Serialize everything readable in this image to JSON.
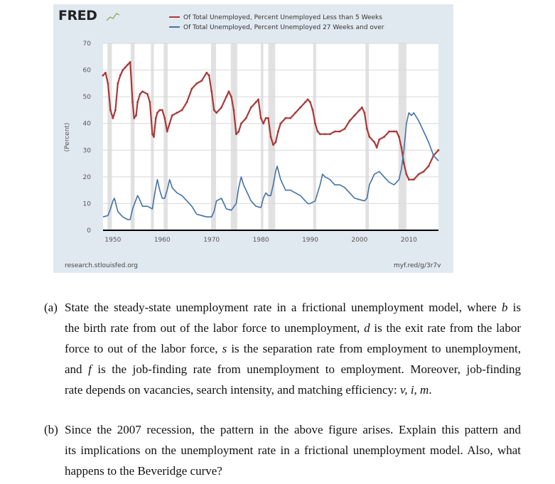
{
  "chart": {
    "logo_text": "FRED",
    "source_left": "research.stlouisfed.org",
    "source_right": "myf.red/g/3r7v",
    "colors": {
      "background": "#e1e9f0",
      "recession": "#e1e1e1",
      "series1": "#aa3939",
      "series2": "#4572a7"
    }
  },
  "chart_data": {
    "type": "line",
    "ylabel": "(Percent)",
    "ylim": [
      0,
      70
    ],
    "xlim": [
      1948,
      2016
    ],
    "grid": true,
    "legend_position": "top",
    "yticks": [
      "0",
      "10",
      "20",
      "30",
      "40",
      "50",
      "60",
      "70"
    ],
    "xticks": [
      "1950",
      "1960",
      "1970",
      "1980",
      "1990",
      "2000",
      "2010"
    ],
    "recessions": [
      [
        1948.9,
        1949.8
      ],
      [
        1953.6,
        1954.4
      ],
      [
        1957.7,
        1958.3
      ],
      [
        1960.3,
        1961.1
      ],
      [
        1969.9,
        1970.9
      ],
      [
        1973.9,
        1975.2
      ],
      [
        1980.0,
        1980.5
      ],
      [
        1981.5,
        1982.9
      ],
      [
        1990.6,
        1991.2
      ],
      [
        2001.2,
        2001.9
      ],
      [
        2007.9,
        2009.5
      ]
    ],
    "series": [
      {
        "name": "Of Total Unemployed, Percent Unemployed Less than 5 Weeks",
        "x": [
          1948,
          1948.5,
          1949,
          1949.5,
          1950,
          1950.5,
          1951,
          1951.5,
          1952,
          1952.5,
          1953,
          1953.5,
          1954,
          1954.3,
          1954.7,
          1955,
          1955.5,
          1956,
          1957,
          1957.5,
          1958,
          1958.3,
          1958.7,
          1959,
          1959.5,
          1960,
          1960.5,
          1961,
          1961.5,
          1962,
          1963,
          1964,
          1965,
          1966,
          1967,
          1968,
          1969,
          1969.5,
          1970,
          1970.5,
          1971,
          1972,
          1973,
          1973.5,
          1974,
          1974.5,
          1975,
          1975.5,
          1976,
          1977,
          1978,
          1979,
          1979.5,
          1980,
          1980.5,
          1981,
          1981.5,
          1982,
          1982.5,
          1983,
          1983.5,
          1984,
          1985,
          1986,
          1987,
          1988,
          1989,
          1989.5,
          1990,
          1990.5,
          1991,
          1991.5,
          1992,
          1993,
          1994,
          1995,
          1996,
          1997,
          1998,
          1999,
          2000,
          2000.5,
          2001,
          2001.5,
          2002,
          2003,
          2003.5,
          2004,
          2005,
          2006,
          2007,
          2007.5,
          2008,
          2008.5,
          2009,
          2009.5,
          2010,
          2011,
          2012,
          2013,
          2014,
          2015,
          2016
        ],
        "y": [
          58,
          59,
          55,
          45,
          42,
          45,
          55,
          58,
          60,
          61,
          62,
          63,
          48,
          42,
          43,
          48,
          51,
          52,
          51,
          48,
          36,
          35,
          42,
          44,
          45,
          45,
          42,
          37,
          40,
          43,
          44,
          45,
          48,
          53,
          55,
          56,
          59,
          58,
          52,
          45,
          44,
          46,
          50,
          52,
          50,
          45,
          36,
          37,
          40,
          42,
          46,
          48,
          49,
          42,
          40,
          42,
          42,
          35,
          32,
          33,
          37,
          40,
          42,
          42,
          44,
          46,
          48,
          49,
          48,
          45,
          40,
          37,
          36,
          36,
          36,
          37,
          37,
          38,
          41,
          43,
          45,
          46,
          44,
          38,
          35,
          33,
          31,
          34,
          35,
          37,
          37,
          37,
          35,
          31,
          25,
          21,
          19,
          19,
          21,
          22,
          24,
          28,
          30
        ]
      },
      {
        "name": "Of Total Unemployed, Percent Unemployed 27 Weeks and over",
        "x": [
          1948,
          1949,
          1949.5,
          1950,
          1950.3,
          1951,
          1952,
          1953,
          1953.5,
          1954,
          1955,
          1955.3,
          1956,
          1957,
          1958,
          1958.5,
          1959,
          1959.5,
          1960,
          1960.5,
          1961,
          1961.5,
          1962,
          1963,
          1964,
          1965,
          1966,
          1967,
          1968,
          1969,
          1970,
          1970.5,
          1971,
          1972,
          1972.5,
          1973,
          1974,
          1975,
          1975.5,
          1976,
          1976.5,
          1977,
          1978,
          1979,
          1980,
          1980.5,
          1981,
          1981.5,
          1982,
          1982.5,
          1983,
          1983.3,
          1984,
          1985,
          1986,
          1987,
          1988,
          1989,
          1989.5,
          1990,
          1991,
          1992,
          1992.5,
          1993,
          1994,
          1995,
          1996,
          1997,
          1998,
          1999,
          2000,
          2001,
          2001.5,
          2002,
          2003,
          2004,
          2005,
          2006,
          2007,
          2008,
          2008.5,
          2009,
          2009.5,
          2010,
          2010.5,
          2011,
          2012,
          2013,
          2014,
          2015,
          2016
        ],
        "y": [
          5,
          5.5,
          8,
          11,
          12,
          7,
          5,
          4,
          4,
          8,
          13,
          12,
          9,
          9,
          8,
          14,
          19,
          15,
          12,
          12,
          15,
          19,
          16,
          14,
          13,
          11,
          9,
          6,
          5.5,
          5,
          5,
          7,
          11,
          12,
          10,
          8,
          7.5,
          10,
          16,
          20,
          17,
          15,
          11,
          9,
          8.5,
          12,
          14,
          13,
          13,
          17,
          22,
          24,
          19,
          15,
          15,
          14,
          13,
          11,
          10,
          10,
          11,
          17,
          21,
          20,
          19,
          17,
          17,
          16,
          14,
          12,
          11.5,
          11,
          12,
          17,
          21,
          22,
          20,
          18,
          17,
          19,
          23,
          30,
          40,
          44,
          43,
          44,
          41,
          37,
          33,
          28,
          26
        ]
      }
    ]
  },
  "questions": [
    {
      "label": "(a)",
      "lines": [
        [
          {
            "t": "State the steady-state unemployment rate in a frictional unemployment model, where "
          },
          {
            "t": "b",
            "i": true
          },
          {
            "t": " is"
          }
        ],
        [
          {
            "t": "the birth rate from out of the labor force to unemployment, "
          },
          {
            "t": "d",
            "i": true
          },
          {
            "t": " is the exit rate from the labor"
          }
        ],
        [
          {
            "t": "force to out of the labor force, "
          },
          {
            "t": "s",
            "i": true
          },
          {
            "t": " is the separation rate from employment to unemployment,"
          }
        ],
        [
          {
            "t": "and "
          },
          {
            "t": "f",
            "i": true
          },
          {
            "t": " is the job-finding rate from unemployment to employment.  Moreover, job-finding"
          }
        ],
        [
          {
            "t": "rate depends on vacancies, search intensity, and matching efficiency: "
          },
          {
            "t": "v, i, m",
            "i": true
          },
          {
            "t": "."
          }
        ]
      ]
    },
    {
      "label": "(b)",
      "lines": [
        [
          {
            "t": "Since the 2007 recession, the pattern in the above figure arises.  Explain this pattern and"
          }
        ],
        [
          {
            "t": "its implications on the unemployment rate in a frictional unemployment model.  Also, what"
          }
        ],
        [
          {
            "t": "happens to the Beveridge curve?"
          }
        ]
      ]
    }
  ]
}
